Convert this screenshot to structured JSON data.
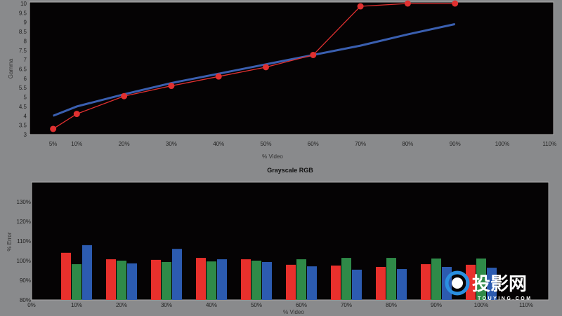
{
  "chart_data": [
    {
      "type": "line",
      "title": "",
      "xlabel": "% Video",
      "ylabel": "Gamma",
      "ylim": [
        3,
        10
      ],
      "xlim": [
        0,
        110
      ],
      "yticks": [
        "3",
        "3.5",
        "4",
        "4.5",
        "5",
        "5.5",
        "6",
        "6.5",
        "7",
        "7.5",
        "8",
        "8.5",
        "9",
        "9.5",
        "10"
      ],
      "xticks": [
        "5%",
        "10%",
        "20%",
        "30%",
        "40%",
        "50%",
        "60%",
        "70%",
        "80%",
        "90%",
        "100%",
        "110%"
      ],
      "xtick_values": [
        5,
        10,
        20,
        30,
        40,
        50,
        60,
        70,
        80,
        90,
        100,
        110
      ],
      "x": [
        5,
        10,
        20,
        30,
        40,
        50,
        60,
        70,
        80,
        90
      ],
      "series": [
        {
          "name": "Target",
          "color": "#3a5fb0",
          "values": [
            4.0,
            4.5,
            5.15,
            5.75,
            6.25,
            6.75,
            7.25,
            7.75,
            8.35,
            8.9
          ]
        },
        {
          "name": "Measured",
          "color": "#e03030",
          "values": [
            3.3,
            4.1,
            5.05,
            5.6,
            6.1,
            6.6,
            7.25,
            9.85,
            10,
            10
          ]
        }
      ]
    },
    {
      "type": "bar",
      "title": "Grayscale RGB",
      "xlabel": "% Video",
      "ylabel": "% Error",
      "ylim": [
        80,
        141
      ],
      "xlim": [
        0,
        110
      ],
      "yticks": [
        "80%",
        "90%",
        "100%",
        "110%",
        "120%",
        "130%"
      ],
      "ytick_values": [
        80,
        90,
        100,
        110,
        120,
        130
      ],
      "xticks": [
        "0%",
        "10%",
        "20%",
        "30%",
        "40%",
        "50%",
        "60%",
        "70%",
        "80%",
        "90%",
        "100%",
        "110%"
      ],
      "xtick_values": [
        0,
        10,
        20,
        30,
        40,
        50,
        60,
        70,
        80,
        90,
        100,
        110
      ],
      "categories": [
        10,
        20,
        30,
        40,
        50,
        60,
        70,
        80,
        90,
        100
      ],
      "series": [
        {
          "name": "Red",
          "color": "#e8302c",
          "values": [
            104,
            100.7,
            100.4,
            101.4,
            100.7,
            97.9,
            97.5,
            96.8,
            98.2,
            97.9
          ]
        },
        {
          "name": "Green",
          "color": "#2f8a48",
          "values": [
            98.2,
            100,
            99.3,
            99.6,
            100,
            100.7,
            101.4,
            101.4,
            101.1,
            101.1
          ]
        },
        {
          "name": "Blue",
          "color": "#2c5bb0",
          "values": [
            107.9,
            98.6,
            106,
            100.7,
            99.3,
            97.1,
            95.4,
            95.7,
            96.8,
            96.4
          ]
        }
      ]
    }
  ],
  "watermark": {
    "brand": "投影网",
    "domain": "TOUYING.COM",
    "color": "#2a8fe0"
  }
}
